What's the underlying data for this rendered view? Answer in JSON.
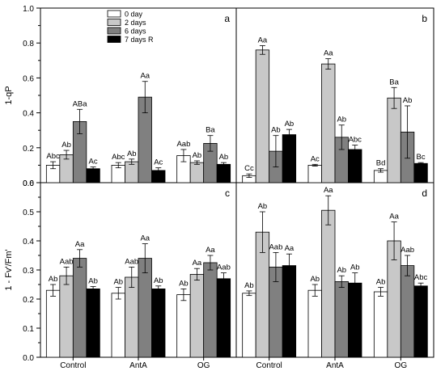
{
  "chart_data": {
    "type": "bar",
    "categories": [
      "Control",
      "AntA",
      "OG"
    ],
    "legend": {
      "placement": "top-left of panel a",
      "entries": [
        {
          "label": "0 day",
          "color": "#ffffff"
        },
        {
          "label": "2 days",
          "color": "#c8c8c8"
        },
        {
          "label": "6 days",
          "color": "#808080"
        },
        {
          "label": "7 days R",
          "color": "#000000"
        }
      ]
    },
    "rows": [
      {
        "ylabel": "1-qP",
        "ylim": [
          0,
          1.0
        ],
        "yticks": [
          "0.0",
          "0.2",
          "0.4",
          "0.6",
          "0.8",
          "1.0"
        ]
      },
      {
        "ylabel": "1 - Fv'/Fm'",
        "ylim": [
          0,
          0.6
        ],
        "yticks": [
          "0.0",
          "0.1",
          "0.2",
          "0.3",
          "0.4",
          "0.5",
          "0.6"
        ]
      }
    ],
    "panels": [
      {
        "letter": "a",
        "row": 0,
        "col": 0,
        "values": [
          [
            0.1,
            0.16,
            0.35,
            0.08
          ],
          [
            0.1,
            0.12,
            0.49,
            0.07
          ],
          [
            0.155,
            0.115,
            0.225,
            0.105
          ]
        ],
        "errors": [
          [
            0.02,
            0.025,
            0.07,
            0.01
          ],
          [
            0.015,
            0.015,
            0.09,
            0.015
          ],
          [
            0.035,
            0.01,
            0.045,
            0.01
          ]
        ],
        "labels": [
          [
            "Abc",
            "Ab",
            "ABa",
            "Ac"
          ],
          [
            "Abc",
            "Ab",
            "Aa",
            "Ac"
          ],
          [
            "Aab",
            "Ab",
            "Ba",
            "Ab"
          ]
        ]
      },
      {
        "letter": "b",
        "row": 0,
        "col": 1,
        "values": [
          [
            0.04,
            0.76,
            0.18,
            0.275
          ],
          [
            0.1,
            0.68,
            0.26,
            0.19
          ],
          [
            0.07,
            0.485,
            0.29,
            0.11
          ]
        ],
        "errors": [
          [
            0.01,
            0.025,
            0.09,
            0.03
          ],
          [
            0.005,
            0.03,
            0.07,
            0.025
          ],
          [
            0.01,
            0.06,
            0.15,
            0.005
          ]
        ],
        "labels": [
          [
            "Cc",
            "Aa",
            "Ab",
            "Ab"
          ],
          [
            "Ac",
            "Aa",
            "Ab",
            "Abc"
          ],
          [
            "Bd",
            "Ba",
            "Ab",
            "Bc"
          ]
        ]
      },
      {
        "letter": "c",
        "row": 1,
        "col": 0,
        "values": [
          [
            0.23,
            0.28,
            0.34,
            0.235
          ],
          [
            0.22,
            0.275,
            0.34,
            0.235
          ],
          [
            0.215,
            0.285,
            0.325,
            0.27
          ]
        ],
        "errors": [
          [
            0.02,
            0.03,
            0.03,
            0.008
          ],
          [
            0.02,
            0.035,
            0.05,
            0.01
          ],
          [
            0.02,
            0.02,
            0.025,
            0.02
          ]
        ],
        "labels": [
          [
            "Ab",
            "Aab",
            "Aa",
            "Ab"
          ],
          [
            "Ab",
            "Aab",
            "Aa",
            "Ab"
          ],
          [
            "Ab",
            "Aa",
            "Aa",
            "Aab"
          ]
        ]
      },
      {
        "letter": "d",
        "row": 1,
        "col": 1,
        "values": [
          [
            0.22,
            0.43,
            0.31,
            0.315
          ],
          [
            0.23,
            0.505,
            0.26,
            0.255
          ],
          [
            0.225,
            0.4,
            0.315,
            0.245
          ]
        ],
        "errors": [
          [
            0.008,
            0.07,
            0.05,
            0.04
          ],
          [
            0.02,
            0.05,
            0.02,
            0.035
          ],
          [
            0.015,
            0.065,
            0.035,
            0.01
          ]
        ],
        "labels": [
          [
            "Ab",
            "Ab",
            "Aab",
            "Aa"
          ],
          [
            "Ab",
            "Aa",
            "Ab",
            "Ab"
          ],
          [
            "Ab",
            "Aa",
            "Aab",
            "Abc"
          ]
        ]
      }
    ],
    "grid": false
  }
}
